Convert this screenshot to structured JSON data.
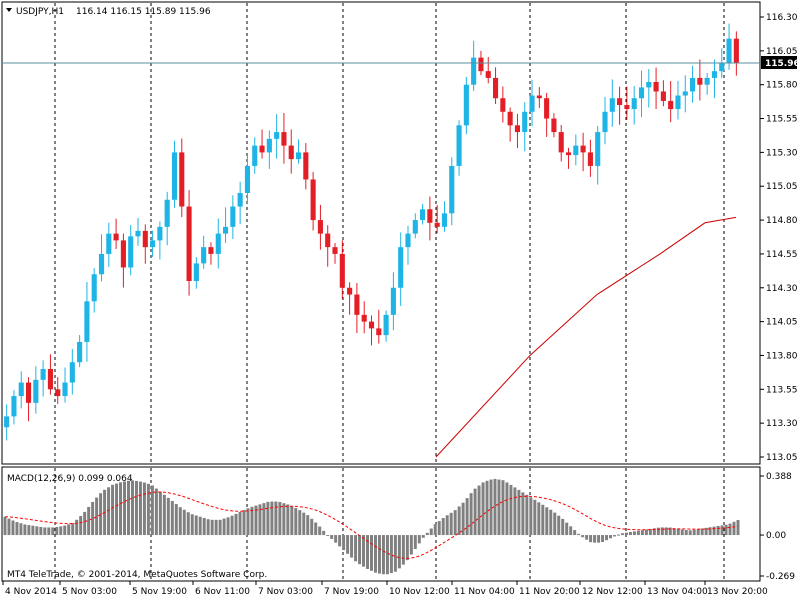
{
  "header": {
    "symbol": "USDJPY,H1",
    "ohlc": "116.14 116.15 115.89 115.96"
  },
  "main_price_axis": {
    "ticks": [
      "116.30",
      "116.05",
      "115.80",
      "115.55",
      "115.30",
      "115.05",
      "114.80",
      "114.55",
      "114.30",
      "114.05",
      "113.80",
      "113.55",
      "113.30",
      "113.05"
    ],
    "current_price": "115.96"
  },
  "macd": {
    "label": "MACD(12,26,9) 0.099 0.064",
    "ticks": [
      "0.388",
      "0.00",
      "-0.269"
    ]
  },
  "x_axis": {
    "labels": [
      "4 Nov 2014",
      "5 Nov 03:00",
      "5 Nov 19:00",
      "6 Nov 11:00",
      "7 Nov 03:00",
      "7 Nov 19:00",
      "10 Nov 12:00",
      "11 Nov 04:00",
      "11 Nov 20:00",
      "12 Nov 12:00",
      "13 Nov 04:00",
      "13 Nov 20:00"
    ]
  },
  "watermark": "MT4 TeleTrade, © 2001-2014, MetaQuotes Software Corp.",
  "colors": {
    "bull": "#1eb4e6",
    "bear": "#e41e26",
    "ma_line": "#cc0000",
    "macd_hist": "#808080",
    "signal": "#ff0000",
    "current_price_line": "#5a8fa0",
    "price_box_bg": "#000000"
  },
  "chart_data": [
    {
      "type": "candlestick",
      "symbol": "USDJPY",
      "timeframe": "H1",
      "ylim": [
        113.05,
        116.3
      ],
      "close_path": [
        113.35,
        113.5,
        113.6,
        113.45,
        113.62,
        113.7,
        113.55,
        113.5,
        113.6,
        113.75,
        113.9,
        114.2,
        114.4,
        114.55,
        114.7,
        114.65,
        114.45,
        114.68,
        114.72,
        114.6,
        114.65,
        114.75,
        114.95,
        115.3,
        114.9,
        114.35,
        114.48,
        114.6,
        114.55,
        114.7,
        114.75,
        114.9,
        115.0,
        115.2,
        115.35,
        115.3,
        115.4,
        115.45,
        115.35,
        115.25,
        115.3,
        115.1,
        114.8,
        114.7,
        114.6,
        114.55,
        114.3,
        114.25,
        114.1,
        114.05,
        114.0,
        113.95,
        114.1,
        114.3,
        114.6,
        114.7,
        114.8,
        114.88,
        114.78,
        114.75,
        114.85,
        115.2,
        115.5,
        115.8,
        116.0,
        115.9,
        115.85,
        115.7,
        115.6,
        115.5,
        115.45,
        115.6,
        115.72,
        115.7,
        115.55,
        115.45,
        115.3,
        115.28,
        115.35,
        115.3,
        115.2,
        115.45,
        115.6,
        115.7,
        115.65,
        115.62,
        115.7,
        115.78,
        115.82,
        115.75,
        115.68,
        115.62,
        115.72,
        115.75,
        115.85,
        115.8,
        115.85,
        115.9,
        115.96,
        116.14,
        115.96
      ],
      "moving_average": [
        {
          "at_label": "10 Nov 12:00",
          "value": 113.05
        },
        {
          "at_label": "11 Nov 20:00",
          "value": 113.8
        },
        {
          "at_label": "12 Nov 12:00",
          "value": 114.25
        },
        {
          "at_label": "13 Nov 04:00",
          "value": 114.55
        },
        {
          "at_label": "13 Nov 20:00",
          "value": 114.78
        },
        {
          "at_label": "last bar",
          "value": 114.82
        }
      ]
    },
    {
      "type": "bar",
      "name": "MACD(12,26,9)",
      "ylim": [
        -0.269,
        0.388
      ],
      "histogram_profile": [
        0.12,
        0.09,
        0.07,
        0.06,
        0.05,
        0.05,
        0.06,
        0.08,
        0.14,
        0.22,
        0.29,
        0.33,
        0.35,
        0.36,
        0.35,
        0.33,
        0.28,
        0.23,
        0.18,
        0.14,
        0.12,
        0.1,
        0.1,
        0.12,
        0.15,
        0.18,
        0.2,
        0.22,
        0.22,
        0.2,
        0.17,
        0.13,
        0.07,
        0.0,
        -0.06,
        -0.12,
        -0.18,
        -0.22,
        -0.25,
        -0.26,
        -0.24,
        -0.18,
        -0.09,
        0.0,
        0.07,
        0.12,
        0.16,
        0.22,
        0.3,
        0.35,
        0.37,
        0.36,
        0.32,
        0.28,
        0.24,
        0.2,
        0.16,
        0.11,
        0.05,
        -0.01,
        -0.05,
        -0.05,
        -0.02,
        0.01,
        0.02,
        0.03,
        0.04,
        0.05,
        0.05,
        0.04,
        0.03,
        0.04,
        0.05,
        0.06,
        0.07,
        0.099
      ],
      "signal_last": 0.064
    }
  ]
}
